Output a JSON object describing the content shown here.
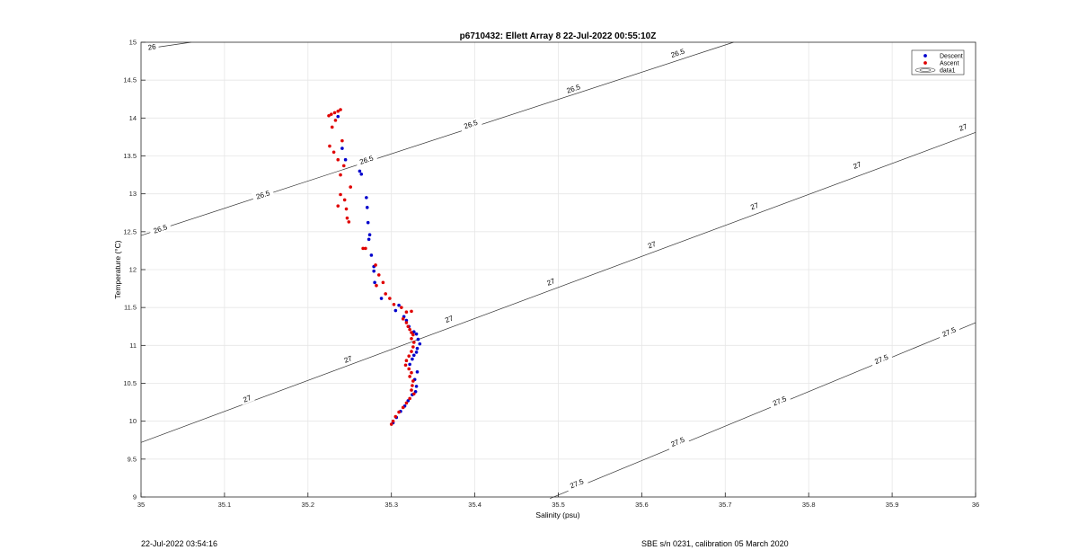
{
  "chart_data": {
    "type": "scatter",
    "title": "p6710432: Ellett Array 8 22-Jul-2022 00:55:10Z",
    "xlabel": "Salinity (psu)",
    "ylabel": "Temperature (°C)",
    "xlim": [
      35,
      36
    ],
    "ylim": [
      9,
      15
    ],
    "grid": true,
    "legend_position": "top-right",
    "x_ticks": [
      "35",
      "35.1",
      "35.2",
      "35.3",
      "35.4",
      "35.5",
      "35.6",
      "35.7",
      "35.8",
      "35.9",
      "36"
    ],
    "y_ticks": [
      "9",
      "9.5",
      "10",
      "10.5",
      "11",
      "11.5",
      "12",
      "12.5",
      "13",
      "13.5",
      "14",
      "14.5",
      "15"
    ],
    "legend": [
      "Descent",
      "Ascent",
      "data1"
    ],
    "series": [
      {
        "name": "Descent",
        "color": "#0000cc",
        "points": [
          [
            35.236,
            14.02
          ],
          [
            35.241,
            13.6
          ],
          [
            35.245,
            13.45
          ],
          [
            35.262,
            13.3
          ],
          [
            35.264,
            13.26
          ],
          [
            35.27,
            12.95
          ],
          [
            35.271,
            12.82
          ],
          [
            35.272,
            12.62
          ],
          [
            35.274,
            12.46
          ],
          [
            35.273,
            12.4
          ],
          [
            35.276,
            12.19
          ],
          [
            35.279,
            12.04
          ],
          [
            35.279,
            11.98
          ],
          [
            35.28,
            11.83
          ],
          [
            35.288,
            11.62
          ],
          [
            35.309,
            11.53
          ],
          [
            35.305,
            11.46
          ],
          [
            35.315,
            11.38
          ],
          [
            35.318,
            11.33
          ],
          [
            35.321,
            11.25
          ],
          [
            35.327,
            11.18
          ],
          [
            35.33,
            11.15
          ],
          [
            35.332,
            11.08
          ],
          [
            35.334,
            11.02
          ],
          [
            35.331,
            10.96
          ],
          [
            35.33,
            10.91
          ],
          [
            35.327,
            10.87
          ],
          [
            35.325,
            10.82
          ],
          [
            35.322,
            10.75
          ],
          [
            35.331,
            10.65
          ],
          [
            35.328,
            10.55
          ],
          [
            35.33,
            10.46
          ],
          [
            35.329,
            10.39
          ],
          [
            35.325,
            10.35
          ],
          [
            35.32,
            10.27
          ],
          [
            35.316,
            10.2
          ],
          [
            35.311,
            10.13
          ],
          [
            35.306,
            10.05
          ],
          [
            35.302,
            9.98
          ]
        ]
      },
      {
        "name": "Ascent",
        "color": "#e00000",
        "points": [
          [
            35.225,
            14.03
          ],
          [
            35.228,
            14.05
          ],
          [
            35.232,
            14.07
          ],
          [
            35.236,
            14.09
          ],
          [
            35.239,
            14.11
          ],
          [
            35.233,
            13.97
          ],
          [
            35.229,
            13.88
          ],
          [
            35.241,
            13.7
          ],
          [
            35.226,
            13.63
          ],
          [
            35.231,
            13.55
          ],
          [
            35.236,
            13.45
          ],
          [
            35.243,
            13.37
          ],
          [
            35.239,
            13.25
          ],
          [
            35.251,
            13.09
          ],
          [
            35.239,
            12.99
          ],
          [
            35.244,
            12.92
          ],
          [
            35.236,
            12.84
          ],
          [
            35.246,
            12.8
          ],
          [
            35.247,
            12.68
          ],
          [
            35.249,
            12.63
          ],
          [
            35.269,
            12.28
          ],
          [
            35.266,
            12.28
          ],
          [
            35.281,
            12.06
          ],
          [
            35.285,
            11.93
          ],
          [
            35.282,
            11.79
          ],
          [
            35.29,
            11.83
          ],
          [
            35.293,
            11.68
          ],
          [
            35.298,
            11.62
          ],
          [
            35.303,
            11.54
          ],
          [
            35.312,
            11.5
          ],
          [
            35.318,
            11.44
          ],
          [
            35.324,
            11.45
          ],
          [
            35.314,
            11.35
          ],
          [
            35.318,
            11.3
          ],
          [
            35.32,
            11.25
          ],
          [
            35.322,
            11.21
          ],
          [
            35.324,
            11.17
          ],
          [
            35.326,
            11.14
          ],
          [
            35.324,
            11.09
          ],
          [
            35.327,
            11.04
          ],
          [
            35.326,
            10.98
          ],
          [
            35.324,
            10.92
          ],
          [
            35.321,
            10.86
          ],
          [
            35.318,
            10.8
          ],
          [
            35.317,
            10.74
          ],
          [
            35.321,
            10.69
          ],
          [
            35.324,
            10.64
          ],
          [
            35.322,
            10.59
          ],
          [
            35.326,
            10.53
          ],
          [
            35.325,
            10.47
          ],
          [
            35.324,
            10.41
          ],
          [
            35.327,
            10.36
          ],
          [
            35.322,
            10.3
          ],
          [
            35.318,
            10.24
          ],
          [
            35.314,
            10.18
          ],
          [
            35.309,
            10.12
          ],
          [
            35.305,
            10.06
          ],
          [
            35.302,
            10.0
          ],
          [
            35.3,
            9.96
          ]
        ]
      }
    ],
    "contours": [
      {
        "label": "26",
        "start": [
          35.01,
          14.92
        ],
        "end": [
          35.06,
          15.0
        ],
        "labels_at": [
          [
            35.013,
            14.94
          ]
        ]
      },
      {
        "label": "26.5",
        "start": [
          35.0,
          12.45
        ],
        "end": [
          35.71,
          15.0
        ],
        "labels_at": [
          [
            35.023,
            12.54
          ],
          [
            35.146,
            12.99
          ],
          [
            35.27,
            13.45
          ],
          [
            35.395,
            13.92
          ],
          [
            35.518,
            14.39
          ],
          [
            35.643,
            14.86
          ]
        ]
      },
      {
        "label": "27",
        "start": [
          35.0,
          9.72
        ],
        "end": [
          36.0,
          13.81
        ],
        "labels_at": [
          [
            35.127,
            10.3
          ],
          [
            35.248,
            10.82
          ],
          [
            35.369,
            11.35
          ],
          [
            35.491,
            11.84
          ],
          [
            35.612,
            12.33
          ],
          [
            35.735,
            12.84
          ],
          [
            35.858,
            13.38
          ],
          [
            35.985,
            13.88
          ]
        ]
      },
      {
        "label": "27.5",
        "start": [
          35.49,
          8.98
        ],
        "end": [
          36.0,
          11.3
        ],
        "labels_at": [
          [
            35.522,
            9.18
          ],
          [
            35.643,
            9.73
          ],
          [
            35.765,
            10.27
          ],
          [
            35.887,
            10.82
          ],
          [
            35.968,
            11.18
          ]
        ]
      }
    ]
  },
  "footer": {
    "left": "22-Jul-2022 03:54:16",
    "right": "SBE s/n 0231, calibration 05 March 2020"
  }
}
